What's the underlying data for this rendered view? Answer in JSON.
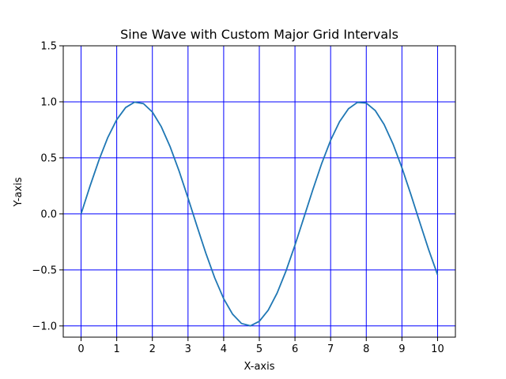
{
  "chart_data": {
    "type": "line",
    "title": "Sine Wave with Custom Major Grid Intervals",
    "xlabel": "X-axis",
    "ylabel": "Y-axis",
    "xlim": [
      -0.5,
      10.5
    ],
    "ylim": [
      -1.1,
      1.5
    ],
    "x_ticks": [
      0,
      1,
      2,
      3,
      4,
      5,
      6,
      7,
      8,
      9,
      10
    ],
    "x_tick_labels": [
      "0",
      "1",
      "2",
      "3",
      "4",
      "5",
      "6",
      "7",
      "8",
      "9",
      "10"
    ],
    "y_ticks": [
      -1.0,
      -0.5,
      0.0,
      0.5,
      1.0,
      1.5
    ],
    "y_tick_labels": [
      "−1.0",
      "−0.5",
      "0.0",
      "0.5",
      "1.0",
      "1.5"
    ],
    "grid": true,
    "grid_color": "#0000ff",
    "line_color": "#1f77b4",
    "series": [
      {
        "x": [
          0,
          0.25,
          0.5,
          0.75,
          1,
          1.25,
          1.5,
          1.75,
          2,
          2.25,
          2.5,
          2.75,
          3,
          3.25,
          3.5,
          3.75,
          4,
          4.25,
          4.5,
          4.75,
          5,
          5.25,
          5.5,
          5.75,
          6,
          6.25,
          6.5,
          6.75,
          7,
          7.25,
          7.5,
          7.75,
          8,
          8.25,
          8.5,
          8.75,
          9,
          9.25,
          9.5,
          9.75,
          10
        ],
        "y": [
          0.0,
          0.247,
          0.479,
          0.682,
          0.841,
          0.949,
          0.997,
          0.984,
          0.909,
          0.778,
          0.598,
          0.382,
          0.141,
          -0.108,
          -0.351,
          -0.572,
          -0.757,
          -0.895,
          -0.978,
          -0.999,
          -0.959,
          -0.859,
          -0.706,
          -0.508,
          -0.279,
          -0.033,
          0.215,
          0.45,
          0.657,
          0.823,
          0.938,
          0.995,
          0.989,
          0.923,
          0.798,
          0.624,
          0.412,
          0.174,
          -0.075,
          -0.319,
          -0.544
        ]
      }
    ]
  }
}
